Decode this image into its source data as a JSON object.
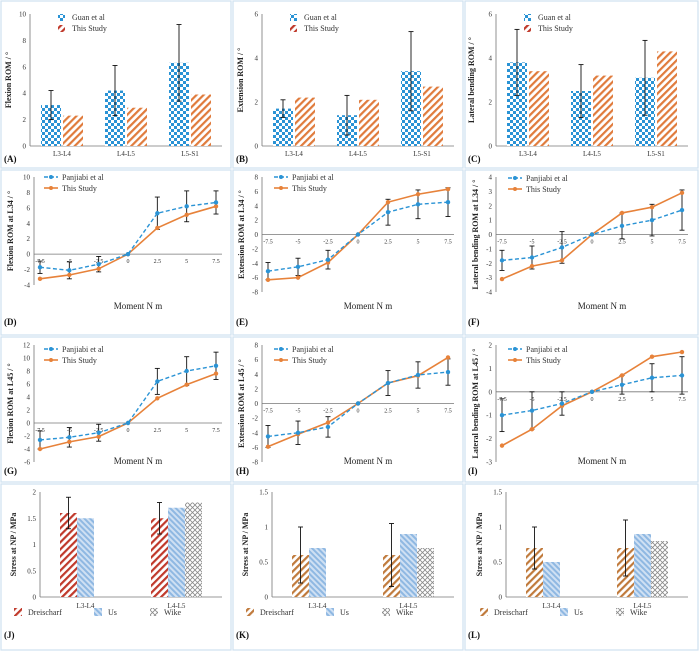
{
  "colors": {
    "blue": "#2a93d5",
    "light_blue": "#9cc3e6",
    "orange": "#e7823a",
    "red": "#c0392b",
    "brown": "#b0703a",
    "grey": "#8c8c8c",
    "frame": "#cfe1ef"
  },
  "chart_data": [
    {
      "id": "A",
      "type": "bar",
      "panel_label": "(A)",
      "ylabel": "Flexion ROM / °",
      "ylim": [
        0,
        10
      ],
      "yticks": [
        "0",
        "2",
        "4",
        "6",
        "8",
        "10"
      ],
      "categories": [
        "L3-L4",
        "L4-L5",
        "L5-S1"
      ],
      "series": [
        {
          "name": "Guan et al",
          "values": [
            3.1,
            4.2,
            6.3
          ],
          "errors": [
            1.1,
            1.9,
            2.9
          ]
        },
        {
          "name": "This Study",
          "values": [
            2.3,
            2.9,
            3.9
          ]
        }
      ]
    },
    {
      "id": "B",
      "type": "bar",
      "panel_label": "(B)",
      "ylabel": "Extension ROM / °",
      "ylim": [
        0,
        6
      ],
      "yticks": [
        "0",
        "2",
        "4",
        "6"
      ],
      "categories": [
        "L3-L4",
        "L4-L5",
        "L5-S1"
      ],
      "series": [
        {
          "name": "Guan et al",
          "values": [
            1.7,
            1.4,
            3.4
          ],
          "errors": [
            0.4,
            0.9,
            1.8
          ]
        },
        {
          "name": "This Study",
          "values": [
            2.2,
            2.1,
            2.7
          ]
        }
      ]
    },
    {
      "id": "C",
      "type": "bar",
      "panel_label": "(C)",
      "ylabel": "Lateral bending ROM / °",
      "ylim": [
        0,
        6
      ],
      "yticks": [
        "0",
        "2",
        "4",
        "6"
      ],
      "categories": [
        "L3-L4",
        "L4-L5",
        "L5-S1"
      ],
      "series": [
        {
          "name": "Guan et al",
          "values": [
            3.8,
            2.5,
            3.1
          ],
          "errors": [
            1.5,
            1.2,
            1.7
          ]
        },
        {
          "name": "This Study",
          "values": [
            3.4,
            3.2,
            4.3
          ]
        }
      ]
    },
    {
      "id": "D",
      "type": "line",
      "panel_label": "(D)",
      "ylabel": "Flexion ROM at L34 / °",
      "xlabel": "Moment  N m",
      "x": [
        -7.5,
        -5,
        -2.5,
        0,
        2.5,
        5,
        7.5
      ],
      "xticks": [
        "-7.5",
        "-5",
        "-2.5",
        "0",
        "2.5",
        "5",
        "7.5"
      ],
      "ylim": [
        -4,
        10
      ],
      "yticks": [
        "-4",
        "-2",
        "0",
        "2",
        "4",
        "6",
        "8",
        "10"
      ],
      "series": [
        {
          "name": "Panjiabi et al",
          "values": [
            -1.7,
            -2.1,
            -1.3,
            0,
            5.3,
            6.2,
            6.7
          ],
          "errors": [
            0.8,
            1.1,
            1.0,
            0,
            2.1,
            2.0,
            1.5
          ]
        },
        {
          "name": "This Study",
          "values": [
            -3.2,
            -2.7,
            -1.9,
            0,
            3.4,
            5.1,
            6.2
          ]
        }
      ]
    },
    {
      "id": "E",
      "type": "line",
      "panel_label": "(E)",
      "ylabel": "Extension ROM at L34 / °",
      "xlabel": "Moment  N m",
      "x": [
        -7.5,
        -5,
        -2.5,
        0,
        2.5,
        5,
        7.5
      ],
      "xticks": [
        "-7.5",
        "-5",
        "-2.5",
        "0",
        "2.5",
        "5",
        "7.5"
      ],
      "ylim": [
        -8,
        8
      ],
      "yticks": [
        "-8",
        "-6",
        "-4",
        "-2",
        "0",
        "2",
        "4",
        "6",
        "8"
      ],
      "series": [
        {
          "name": "Panjiabi et al",
          "values": [
            -5.1,
            -4.5,
            -3.5,
            0,
            3.1,
            4.2,
            4.5
          ],
          "errors": [
            1.2,
            1.2,
            1.3,
            0,
            1.8,
            2.0,
            2.0
          ]
        },
        {
          "name": "This Study",
          "values": [
            -6.3,
            -6.0,
            -3.9,
            0,
            4.5,
            5.6,
            6.3
          ]
        }
      ]
    },
    {
      "id": "F",
      "type": "line",
      "panel_label": "(F)",
      "ylabel": "Lateral bending ROM at L34 / °",
      "xlabel": "Moment  N m",
      "x": [
        -7.5,
        -5,
        -2.5,
        0,
        2.5,
        5,
        7.5
      ],
      "xticks": [
        "-7.5",
        "-5",
        "-2.5",
        "0",
        "2.5",
        "5",
        "7.5"
      ],
      "ylim": [
        -4,
        4
      ],
      "yticks": [
        "-4",
        "-3",
        "-2",
        "-1",
        "0",
        "1",
        "2",
        "3",
        "4"
      ],
      "series": [
        {
          "name": "Panjiabi et al",
          "values": [
            -1.8,
            -1.6,
            -0.9,
            0,
            0.6,
            1.0,
            1.7
          ],
          "errors": [
            0.7,
            0.8,
            1.1,
            0,
            0.9,
            1.1,
            1.4
          ]
        },
        {
          "name": "This Study",
          "values": [
            -3.1,
            -2.2,
            -1.8,
            0,
            1.5,
            1.9,
            2.9
          ]
        }
      ]
    },
    {
      "id": "G",
      "type": "line",
      "panel_label": "(G)",
      "ylabel": "Flexion ROM at L45 / °",
      "xlabel": "Moment  N m",
      "x": [
        -7.5,
        -5,
        -2.5,
        0,
        2.5,
        5,
        7.5
      ],
      "xticks": [
        "-7.5",
        "-5",
        "-2.5",
        "0",
        "2.5",
        "5",
        "7.5"
      ],
      "ylim": [
        -6,
        12
      ],
      "yticks": [
        "-6",
        "-4",
        "-2",
        "0",
        "2",
        "4",
        "6",
        "8",
        "10",
        "12"
      ],
      "series": [
        {
          "name": "Panjiabi et al",
          "values": [
            -2.6,
            -2.2,
            -1.5,
            0,
            6.4,
            8.0,
            8.8
          ],
          "errors": [
            1.4,
            1.5,
            1.3,
            0,
            2.0,
            2.2,
            2.1
          ]
        },
        {
          "name": "This Study",
          "values": [
            -4.0,
            -2.9,
            -2.1,
            0,
            3.8,
            5.9,
            7.6
          ]
        }
      ]
    },
    {
      "id": "H",
      "type": "line",
      "panel_label": "(H)",
      "ylabel": "Extension ROM at L45 / °",
      "xlabel": "Moment  N m",
      "x": [
        -7.5,
        -5,
        -2.5,
        0,
        2.5,
        5,
        7.5
      ],
      "xticks": [
        "-7.5",
        "-5",
        "-2.5",
        "0",
        "2.5",
        "5",
        "7.5"
      ],
      "ylim": [
        -8,
        8
      ],
      "yticks": [
        "-8",
        "-6",
        "-4",
        "-2",
        "0",
        "2",
        "4",
        "6",
        "8"
      ],
      "series": [
        {
          "name": "Panjiabi et al",
          "values": [
            -4.5,
            -4.0,
            -3.2,
            0,
            2.8,
            3.9,
            4.3
          ],
          "errors": [
            1.5,
            1.6,
            1.4,
            0,
            1.7,
            1.8,
            1.8
          ]
        },
        {
          "name": "This Study",
          "values": [
            -5.9,
            -4.2,
            -2.6,
            0,
            2.8,
            3.8,
            6.3
          ]
        }
      ]
    },
    {
      "id": "I",
      "type": "line",
      "panel_label": "(I)",
      "ylabel": "Lateral bending ROM at L45 / °",
      "xlabel": "Moment  N m",
      "x": [
        -7.5,
        -5,
        -2.5,
        0,
        2.5,
        5,
        7.5
      ],
      "xticks": [
        "-7.5",
        "-5",
        "-2.5",
        "0",
        "2.5",
        "5",
        "7.5"
      ],
      "ylim": [
        -3,
        2
      ],
      "yticks": [
        "-3",
        "-2",
        "-1",
        "0",
        "1",
        "2"
      ],
      "series": [
        {
          "name": "Panjiabi et al",
          "values": [
            -1.0,
            -0.8,
            -0.5,
            0,
            0.3,
            0.6,
            0.7
          ],
          "errors": [
            0.7,
            0.8,
            0.5,
            0,
            0.4,
            0.6,
            0.8
          ]
        },
        {
          "name": "This Study",
          "values": [
            -2.3,
            -1.6,
            -0.6,
            0,
            0.7,
            1.5,
            1.7
          ]
        }
      ]
    },
    {
      "id": "J",
      "type": "bar",
      "panel_label": "(J)",
      "ylabel": "Stress at NP / MPa",
      "ylim": [
        0,
        2
      ],
      "yticks": [
        "0",
        "0.5",
        "1",
        "1.5",
        "2"
      ],
      "categories": [
        "L3-L4",
        "L4-L5"
      ],
      "series": [
        {
          "name": "Dreischarf",
          "values": [
            1.6,
            1.5
          ],
          "errors": [
            0.3,
            0.3
          ]
        },
        {
          "name": "Us",
          "values": [
            1.5,
            1.7
          ]
        },
        {
          "name": "Wike",
          "values": [
            null,
            1.8
          ]
        }
      ]
    },
    {
      "id": "K",
      "type": "bar",
      "panel_label": "(K)",
      "ylabel": "Stress at NP / MPa",
      "ylim": [
        0,
        1.5
      ],
      "yticks": [
        "0",
        "0.5",
        "1",
        "1.5"
      ],
      "categories": [
        "L3-L4",
        "L4-L5"
      ],
      "series": [
        {
          "name": "Dreischarf",
          "values": [
            0.6,
            0.6
          ],
          "errors": [
            0.4,
            0.45
          ]
        },
        {
          "name": "Us",
          "values": [
            0.7,
            0.9
          ]
        },
        {
          "name": "Wike",
          "values": [
            null,
            0.7
          ]
        }
      ]
    },
    {
      "id": "L",
      "type": "bar",
      "panel_label": "(L)",
      "ylabel": "Stress at NP / MPa",
      "ylim": [
        0,
        1.5
      ],
      "yticks": [
        "0",
        "0.5",
        "1",
        "1.5"
      ],
      "categories": [
        "L3-L4",
        "L4-L5"
      ],
      "series": [
        {
          "name": "Dreischarf",
          "values": [
            0.7,
            0.7
          ],
          "errors": [
            0.3,
            0.4
          ]
        },
        {
          "name": "Us",
          "values": [
            0.5,
            0.9
          ]
        },
        {
          "name": "Wike",
          "values": [
            null,
            0.8
          ]
        }
      ]
    }
  ]
}
